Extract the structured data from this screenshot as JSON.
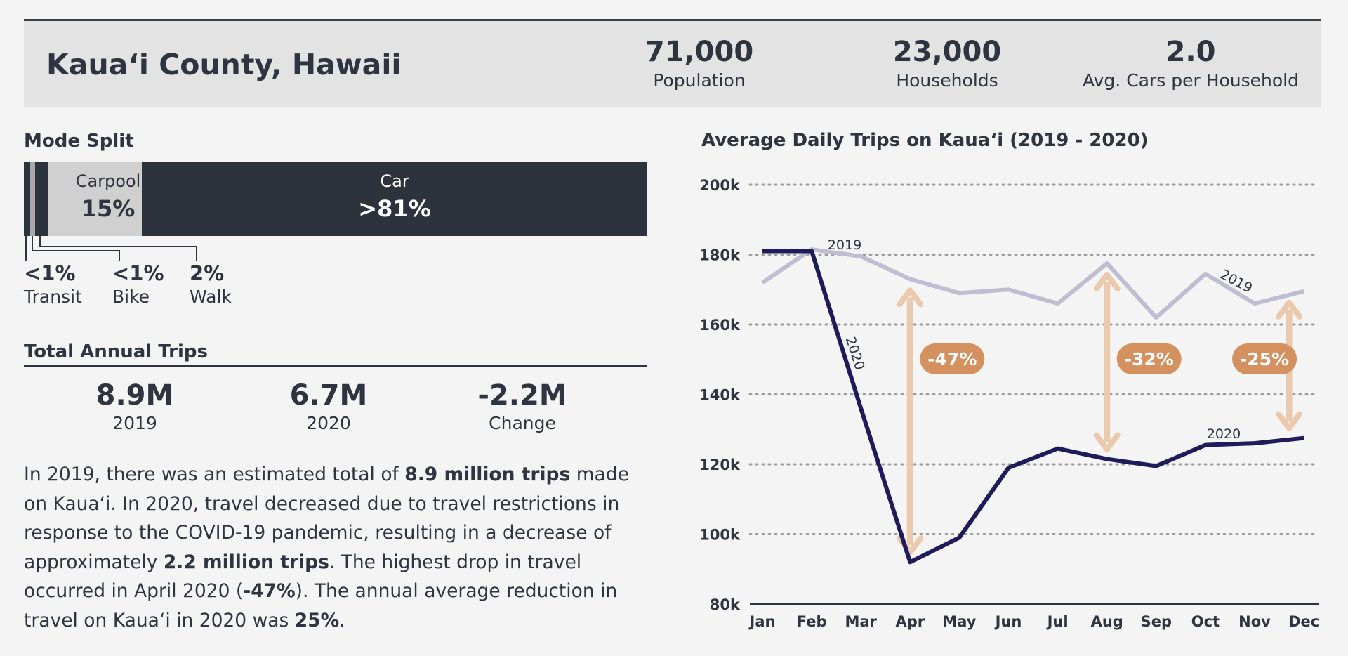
{
  "header": {
    "title": "Kaua‘i County, Hawaii",
    "stats": [
      {
        "value": "71,000",
        "label": "Population"
      },
      {
        "value": "23,000",
        "label": "Households"
      },
      {
        "value": "2.0",
        "label": "Avg. Cars per Household"
      }
    ]
  },
  "mode_split": {
    "title": "Mode Split",
    "carpool": {
      "name": "Carpool",
      "value": "15%"
    },
    "car": {
      "name": "Car",
      "value": ">81%"
    },
    "transit": {
      "name": "Transit",
      "value": "<1%"
    },
    "bike": {
      "name": "Bike",
      "value": "<1%"
    },
    "walk": {
      "name": "Walk",
      "value": "2%"
    }
  },
  "annual": {
    "title": "Total Annual Trips",
    "stats": [
      {
        "value": "8.9M",
        "label": "2019"
      },
      {
        "value": "6.7M",
        "label": "2020"
      },
      {
        "value": "-2.2M",
        "label": "Change"
      }
    ]
  },
  "paragraph": {
    "p1": "In 2019, there was an estimated total of ",
    "b1": "8.9 million trips",
    "p2": " made on Kaua‘i. In 2020, travel decreased due to travel restrictions in response to the COVID-19 pandemic, resulting in a decrease of approximately ",
    "b2": "2.2 million trips",
    "p3": ". The highest drop in travel occurred in April 2020 (",
    "b3": "-47%",
    "p4": "). The annual average reduction in travel on Kaua‘i in 2020 was ",
    "b4": "25%",
    "p5": "."
  },
  "colors": {
    "dark": "#2d333c",
    "carpool": "#d0d0d0",
    "series2019": "#c0bdd3",
    "series2020": "#1e1b5a",
    "arrow": "#ebc9ad",
    "badge": "#d4905e"
  },
  "chart_data": {
    "type": "line",
    "title": "Average Daily Trips on Kaua‘i (2019 - 2020)",
    "categories": [
      "Jan",
      "Feb",
      "Mar",
      "Apr",
      "May",
      "Jun",
      "Jul",
      "Aug",
      "Sep",
      "Oct",
      "Nov",
      "Dec"
    ],
    "series": [
      {
        "name": "2019",
        "values": [
          172000,
          181500,
          179500,
          173000,
          169000,
          170000,
          166000,
          177500,
          162000,
          174500,
          166000,
          169500
        ]
      },
      {
        "name": "2020",
        "values": [
          181000,
          181000,
          136000,
          92000,
          99000,
          119000,
          124500,
          121500,
          119500,
          125500,
          126000,
          127500
        ]
      }
    ],
    "ylim": [
      80000,
      200000
    ],
    "yticks": [
      80000,
      100000,
      120000,
      140000,
      160000,
      180000,
      200000
    ],
    "ytick_labels": [
      "80k",
      "100k",
      "120k",
      "140k",
      "160k",
      "180k",
      "200k"
    ],
    "grid": "horizontal dotted",
    "annotations": [
      {
        "month": "Apr",
        "label": "-47%"
      },
      {
        "month": "Aug",
        "label": "-32%"
      },
      {
        "month": "Dec",
        "label": "-25%"
      }
    ]
  }
}
